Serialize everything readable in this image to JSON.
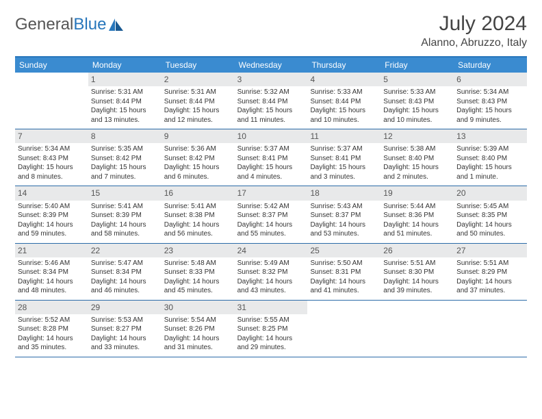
{
  "brand": {
    "text1": "General",
    "text2": "Blue"
  },
  "title": "July 2024",
  "subtitle": "Alanno, Abruzzo, Italy",
  "colors": {
    "header_bg": "#3a8bd0",
    "accent": "#2776bb",
    "daynum_bg": "#e8e9ea",
    "text": "#333333",
    "title_text": "#444444",
    "week_border": "#2a6aa8",
    "page_bg": "#ffffff"
  },
  "typography": {
    "title_fontsize": 30,
    "subtitle_fontsize": 16,
    "weekday_fontsize": 12,
    "daynum_fontsize": 12,
    "body_fontsize": 10
  },
  "weekdays": [
    "Sunday",
    "Monday",
    "Tuesday",
    "Wednesday",
    "Thursday",
    "Friday",
    "Saturday"
  ],
  "weeks": [
    [
      {
        "n": "",
        "sr": "",
        "ss": "",
        "dl": ""
      },
      {
        "n": "1",
        "sr": "Sunrise: 5:31 AM",
        "ss": "Sunset: 8:44 PM",
        "dl": "Daylight: 15 hours and 13 minutes."
      },
      {
        "n": "2",
        "sr": "Sunrise: 5:31 AM",
        "ss": "Sunset: 8:44 PM",
        "dl": "Daylight: 15 hours and 12 minutes."
      },
      {
        "n": "3",
        "sr": "Sunrise: 5:32 AM",
        "ss": "Sunset: 8:44 PM",
        "dl": "Daylight: 15 hours and 11 minutes."
      },
      {
        "n": "4",
        "sr": "Sunrise: 5:33 AM",
        "ss": "Sunset: 8:44 PM",
        "dl": "Daylight: 15 hours and 10 minutes."
      },
      {
        "n": "5",
        "sr": "Sunrise: 5:33 AM",
        "ss": "Sunset: 8:43 PM",
        "dl": "Daylight: 15 hours and 10 minutes."
      },
      {
        "n": "6",
        "sr": "Sunrise: 5:34 AM",
        "ss": "Sunset: 8:43 PM",
        "dl": "Daylight: 15 hours and 9 minutes."
      }
    ],
    [
      {
        "n": "7",
        "sr": "Sunrise: 5:34 AM",
        "ss": "Sunset: 8:43 PM",
        "dl": "Daylight: 15 hours and 8 minutes."
      },
      {
        "n": "8",
        "sr": "Sunrise: 5:35 AM",
        "ss": "Sunset: 8:42 PM",
        "dl": "Daylight: 15 hours and 7 minutes."
      },
      {
        "n": "9",
        "sr": "Sunrise: 5:36 AM",
        "ss": "Sunset: 8:42 PM",
        "dl": "Daylight: 15 hours and 6 minutes."
      },
      {
        "n": "10",
        "sr": "Sunrise: 5:37 AM",
        "ss": "Sunset: 8:41 PM",
        "dl": "Daylight: 15 hours and 4 minutes."
      },
      {
        "n": "11",
        "sr": "Sunrise: 5:37 AM",
        "ss": "Sunset: 8:41 PM",
        "dl": "Daylight: 15 hours and 3 minutes."
      },
      {
        "n": "12",
        "sr": "Sunrise: 5:38 AM",
        "ss": "Sunset: 8:40 PM",
        "dl": "Daylight: 15 hours and 2 minutes."
      },
      {
        "n": "13",
        "sr": "Sunrise: 5:39 AM",
        "ss": "Sunset: 8:40 PM",
        "dl": "Daylight: 15 hours and 1 minute."
      }
    ],
    [
      {
        "n": "14",
        "sr": "Sunrise: 5:40 AM",
        "ss": "Sunset: 8:39 PM",
        "dl": "Daylight: 14 hours and 59 minutes."
      },
      {
        "n": "15",
        "sr": "Sunrise: 5:41 AM",
        "ss": "Sunset: 8:39 PM",
        "dl": "Daylight: 14 hours and 58 minutes."
      },
      {
        "n": "16",
        "sr": "Sunrise: 5:41 AM",
        "ss": "Sunset: 8:38 PM",
        "dl": "Daylight: 14 hours and 56 minutes."
      },
      {
        "n": "17",
        "sr": "Sunrise: 5:42 AM",
        "ss": "Sunset: 8:37 PM",
        "dl": "Daylight: 14 hours and 55 minutes."
      },
      {
        "n": "18",
        "sr": "Sunrise: 5:43 AM",
        "ss": "Sunset: 8:37 PM",
        "dl": "Daylight: 14 hours and 53 minutes."
      },
      {
        "n": "19",
        "sr": "Sunrise: 5:44 AM",
        "ss": "Sunset: 8:36 PM",
        "dl": "Daylight: 14 hours and 51 minutes."
      },
      {
        "n": "20",
        "sr": "Sunrise: 5:45 AM",
        "ss": "Sunset: 8:35 PM",
        "dl": "Daylight: 14 hours and 50 minutes."
      }
    ],
    [
      {
        "n": "21",
        "sr": "Sunrise: 5:46 AM",
        "ss": "Sunset: 8:34 PM",
        "dl": "Daylight: 14 hours and 48 minutes."
      },
      {
        "n": "22",
        "sr": "Sunrise: 5:47 AM",
        "ss": "Sunset: 8:34 PM",
        "dl": "Daylight: 14 hours and 46 minutes."
      },
      {
        "n": "23",
        "sr": "Sunrise: 5:48 AM",
        "ss": "Sunset: 8:33 PM",
        "dl": "Daylight: 14 hours and 45 minutes."
      },
      {
        "n": "24",
        "sr": "Sunrise: 5:49 AM",
        "ss": "Sunset: 8:32 PM",
        "dl": "Daylight: 14 hours and 43 minutes."
      },
      {
        "n": "25",
        "sr": "Sunrise: 5:50 AM",
        "ss": "Sunset: 8:31 PM",
        "dl": "Daylight: 14 hours and 41 minutes."
      },
      {
        "n": "26",
        "sr": "Sunrise: 5:51 AM",
        "ss": "Sunset: 8:30 PM",
        "dl": "Daylight: 14 hours and 39 minutes."
      },
      {
        "n": "27",
        "sr": "Sunrise: 5:51 AM",
        "ss": "Sunset: 8:29 PM",
        "dl": "Daylight: 14 hours and 37 minutes."
      }
    ],
    [
      {
        "n": "28",
        "sr": "Sunrise: 5:52 AM",
        "ss": "Sunset: 8:28 PM",
        "dl": "Daylight: 14 hours and 35 minutes."
      },
      {
        "n": "29",
        "sr": "Sunrise: 5:53 AM",
        "ss": "Sunset: 8:27 PM",
        "dl": "Daylight: 14 hours and 33 minutes."
      },
      {
        "n": "30",
        "sr": "Sunrise: 5:54 AM",
        "ss": "Sunset: 8:26 PM",
        "dl": "Daylight: 14 hours and 31 minutes."
      },
      {
        "n": "31",
        "sr": "Sunrise: 5:55 AM",
        "ss": "Sunset: 8:25 PM",
        "dl": "Daylight: 14 hours and 29 minutes."
      },
      {
        "n": "",
        "sr": "",
        "ss": "",
        "dl": ""
      },
      {
        "n": "",
        "sr": "",
        "ss": "",
        "dl": ""
      },
      {
        "n": "",
        "sr": "",
        "ss": "",
        "dl": ""
      }
    ]
  ]
}
